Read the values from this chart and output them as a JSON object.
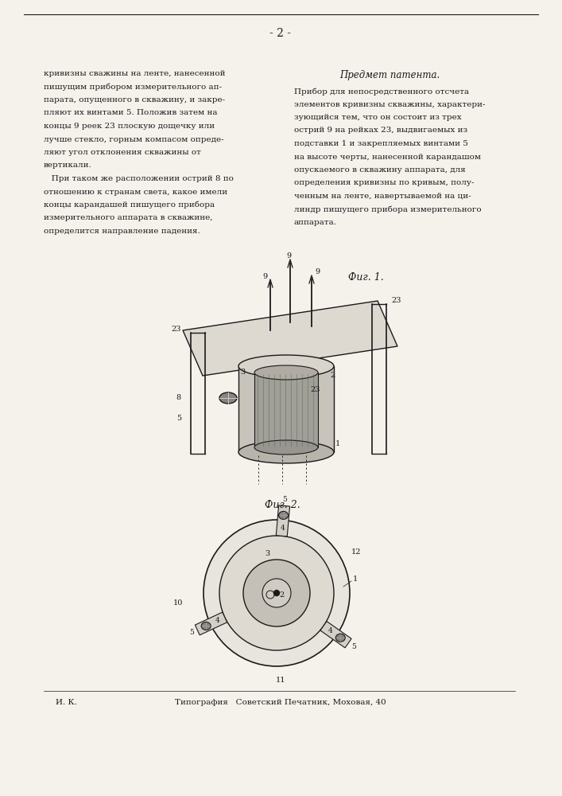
{
  "page_num": "- 2 -",
  "bg_color": "#f5f2ec",
  "text_color": "#1a1a1a",
  "left_col_text": [
    "кривизны сважины на ленте, нанесенной",
    "пишущим прибором измерительного ап-",
    "парата, опущенного в скважину, и закре-",
    "пляют их винтами 5. Положив затем на",
    "концы 9 реек 23 плоскую дощечку или",
    "лучше стекло, горным компасом опреде-",
    "ляют угол отклонения скважины от",
    "вертикали.",
    "   При таком же расположении острий 8 по",
    "отношению к странам света, какое имели",
    "концы карандашей пишущего прибора",
    "измерительного аппарата в скважине,",
    "определится направление падения."
  ],
  "right_col_header": "Предмет патента.",
  "right_col_text": [
    "Прибор для непосредственного отсчета",
    "элементов кривизны скважины, характери-",
    "зующийся тем, что он состоит из трех",
    "острий 9 на рейках 23, выдвигаемых из",
    "подставки 1 и закрепляемых винтами 5",
    "на высоте черты, нанесенной карандашом",
    "опускаемого в скважину аппарата, для",
    "определения кривизны по кривым, полу-",
    "ченным на ленте, навертываемой на ци-",
    "линдр пишущего прибора измерительного",
    "аппарата."
  ],
  "fig1_label": "Фиг. 1.",
  "fig2_label": "Фиг. 2.",
  "footer_left": "И. К.",
  "footer_center": "Типография   Советский Печатник, Моховая, 40"
}
